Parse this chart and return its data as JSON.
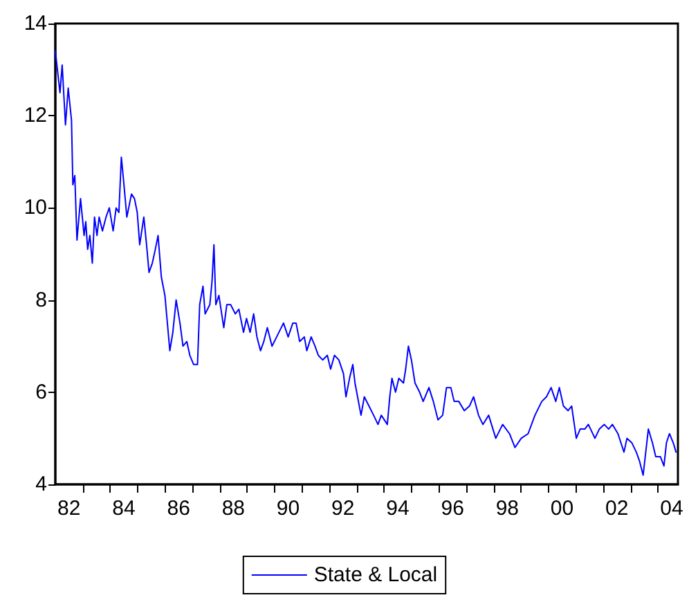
{
  "chart_data": {
    "type": "line",
    "xlim": [
      1981.5,
      2004.23
    ],
    "xticks": [
      {
        "value": 1982,
        "label": "82"
      },
      {
        "value": 1984,
        "label": "84"
      },
      {
        "value": 1986,
        "label": "86"
      },
      {
        "value": 1988,
        "label": "88"
      },
      {
        "value": 1990,
        "label": "90"
      },
      {
        "value": 1992,
        "label": "92"
      },
      {
        "value": 1994,
        "label": "94"
      },
      {
        "value": 1996,
        "label": "96"
      },
      {
        "value": 1998,
        "label": "98"
      },
      {
        "value": 2000,
        "label": "00"
      },
      {
        "value": 2002,
        "label": "02"
      },
      {
        "value": 2004,
        "label": "04"
      },
      {
        "value": 1982.5,
        "label": null
      },
      {
        "value": 1983.5,
        "label": null
      },
      {
        "value": 1984.5,
        "label": null
      },
      {
        "value": 1985.5,
        "label": null
      },
      {
        "value": 1986.5,
        "label": null
      },
      {
        "value": 1987.5,
        "label": null
      },
      {
        "value": 1988.5,
        "label": null
      },
      {
        "value": 1989.5,
        "label": null
      },
      {
        "value": 1990.5,
        "label": null
      },
      {
        "value": 1991.5,
        "label": null
      },
      {
        "value": 1992.5,
        "label": null
      },
      {
        "value": 1993.5,
        "label": null
      },
      {
        "value": 1994.5,
        "label": null
      },
      {
        "value": 1995.5,
        "label": null
      },
      {
        "value": 1996.5,
        "label": null
      },
      {
        "value": 1997.5,
        "label": null
      },
      {
        "value": 1998.5,
        "label": null
      },
      {
        "value": 1999.5,
        "label": null
      },
      {
        "value": 2000.5,
        "label": null
      },
      {
        "value": 2001.5,
        "label": null
      },
      {
        "value": 2002.5,
        "label": null
      },
      {
        "value": 2003.5,
        "label": null
      }
    ],
    "ylim": [
      4,
      14
    ],
    "yticks": [
      4,
      6,
      8,
      10,
      12,
      14
    ],
    "grid": false,
    "legend": "bottom",
    "marker": "none",
    "line_style": "solid",
    "series": [
      {
        "name": "State & Local",
        "color": "#0000ff",
        "x": [
          1981.5,
          1981.67,
          1981.75,
          1981.87,
          1981.97,
          1982.09,
          1982.14,
          1982.21,
          1982.29,
          1982.42,
          1982.55,
          1982.61,
          1982.68,
          1982.76,
          1982.85,
          1982.93,
          1983.02,
          1983.1,
          1983.22,
          1983.35,
          1983.47,
          1983.61,
          1983.72,
          1983.82,
          1983.91,
          1983.99,
          1984.11,
          1984.28,
          1984.39,
          1984.49,
          1984.58,
          1984.73,
          1984.83,
          1984.92,
          1985.04,
          1985.15,
          1985.25,
          1985.37,
          1985.5,
          1985.68,
          1985.79,
          1985.91,
          1986.05,
          1986.16,
          1986.3,
          1986.41,
          1986.55,
          1986.69,
          1986.77,
          1986.89,
          1986.97,
          1987.14,
          1987.22,
          1987.29,
          1987.36,
          1987.47,
          1987.65,
          1987.76,
          1987.9,
          1988.07,
          1988.2,
          1988.37,
          1988.48,
          1988.61,
          1988.74,
          1988.86,
          1988.99,
          1989.11,
          1989.24,
          1989.41,
          1989.58,
          1989.83,
          1990.0,
          1990.17,
          1990.29,
          1990.42,
          1990.59,
          1990.68,
          1990.84,
          1990.98,
          1991.1,
          1991.26,
          1991.43,
          1991.55,
          1991.69,
          1991.85,
          1992.02,
          1992.11,
          1992.24,
          1992.36,
          1992.44,
          1992.66,
          1992.78,
          1992.95,
          1993.12,
          1993.28,
          1993.4,
          1993.62,
          1993.71,
          1993.79,
          1993.92,
          1994.04,
          1994.21,
          1994.29,
          1994.39,
          1994.5,
          1994.63,
          1994.8,
          1994.93,
          1995.14,
          1995.3,
          1995.47,
          1995.64,
          1995.78,
          1995.94,
          1996.06,
          1996.23,
          1996.43,
          1996.62,
          1996.77,
          1996.95,
          1997.11,
          1997.32,
          1997.58,
          1997.83,
          1998.08,
          1998.28,
          1998.51,
          1998.76,
          1999.01,
          1999.26,
          1999.43,
          1999.6,
          1999.77,
          1999.9,
          2000.05,
          2000.22,
          2000.35,
          2000.52,
          2000.66,
          2000.83,
          2000.96,
          2001.2,
          2001.36,
          2001.54,
          2001.7,
          2001.84,
          2002.04,
          2002.26,
          2002.37,
          2002.55,
          2002.71,
          2002.83,
          2002.96,
          2003.15,
          2003.3,
          2003.42,
          2003.59,
          2003.72,
          2003.81,
          2003.92,
          2004.06,
          2004.16
        ],
        "values": [
          13.4,
          12.5,
          13.1,
          11.8,
          12.6,
          11.9,
          10.5,
          10.7,
          9.3,
          10.2,
          9.4,
          9.7,
          9.1,
          9.4,
          8.8,
          9.8,
          9.4,
          9.8,
          9.5,
          9.8,
          10.0,
          9.5,
          10.0,
          9.9,
          11.1,
          10.6,
          9.8,
          10.3,
          10.2,
          9.9,
          9.2,
          9.8,
          9.2,
          8.6,
          8.8,
          9.1,
          9.4,
          8.5,
          8.1,
          6.9,
          7.3,
          8.0,
          7.5,
          7.0,
          7.1,
          6.8,
          6.6,
          6.6,
          7.9,
          8.3,
          7.7,
          7.9,
          8.4,
          9.2,
          7.9,
          8.1,
          7.4,
          7.9,
          7.9,
          7.7,
          7.8,
          7.3,
          7.6,
          7.3,
          7.7,
          7.2,
          6.9,
          7.1,
          7.4,
          7.0,
          7.2,
          7.5,
          7.2,
          7.5,
          7.5,
          7.1,
          7.2,
          6.9,
          7.2,
          7.0,
          6.8,
          6.7,
          6.8,
          6.5,
          6.8,
          6.7,
          6.4,
          5.9,
          6.3,
          6.6,
          6.2,
          5.5,
          5.9,
          5.7,
          5.5,
          5.3,
          5.5,
          5.3,
          5.9,
          6.3,
          6.0,
          6.3,
          6.2,
          6.5,
          7.0,
          6.7,
          6.2,
          6.0,
          5.8,
          6.1,
          5.8,
          5.4,
          5.5,
          6.1,
          6.1,
          5.8,
          5.8,
          5.6,
          5.7,
          5.9,
          5.5,
          5.3,
          5.5,
          5.0,
          5.3,
          5.1,
          4.8,
          5.0,
          5.1,
          5.5,
          5.8,
          5.9,
          6.1,
          5.8,
          6.1,
          5.7,
          5.6,
          5.7,
          5.0,
          5.2,
          5.2,
          5.3,
          5.0,
          5.2,
          5.3,
          5.2,
          5.3,
          5.1,
          4.7,
          5.0,
          4.9,
          4.7,
          4.5,
          4.2,
          5.2,
          4.9,
          4.6,
          4.6,
          4.4,
          4.9,
          5.1,
          4.9,
          4.7
        ]
      }
    ]
  }
}
